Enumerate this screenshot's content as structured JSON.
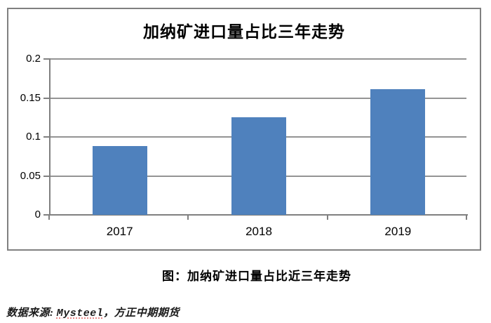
{
  "chart_data": {
    "type": "bar",
    "title": "加纳矿进口量占比三年走势",
    "categories": [
      "2017",
      "2018",
      "2019"
    ],
    "values": [
      0.088,
      0.125,
      0.161
    ],
    "ylim": [
      0,
      0.2
    ],
    "ytick_step": 0.05,
    "ytick_labels": [
      "0",
      "0.05",
      "0.1",
      "0.15",
      "0.2"
    ],
    "grid": true,
    "legend": "none",
    "xlabel": "",
    "ylabel": "",
    "bar_color": "#4F81BD",
    "gridline_color": "#949494",
    "axis_color": "#808080",
    "frame_border_color": "#808080"
  },
  "caption": "图：加纳矿进口量占比近三年走势",
  "source": {
    "prefix": "数据来源: ",
    "vendor": "Mysteel",
    "suffix": "，方正中期期货"
  }
}
